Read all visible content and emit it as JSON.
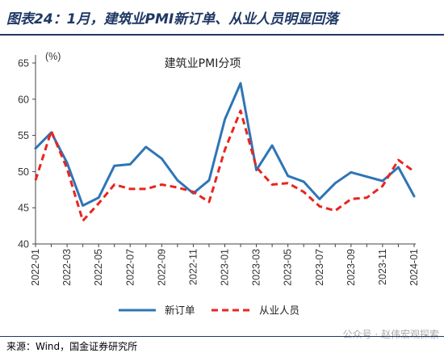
{
  "header": {
    "figure_title": "图表24：1月，建筑业PMI新订单、从业人员明显回落"
  },
  "footer": {
    "source": "来源：Wind，国金证券研究所",
    "watermark": "公众号 · 赵伟宏观探索"
  },
  "colors": {
    "title": "#1f3864",
    "series_new_orders": "#2e75b6",
    "series_employment": "#e8251f"
  },
  "chart_data": {
    "type": "line",
    "title": "建筑业PMI分项",
    "ylabel": "(%)",
    "xlabel": "",
    "ylim": [
      40,
      65
    ],
    "yticks": [
      40,
      45,
      50,
      55,
      60,
      65
    ],
    "x": [
      "2022-01",
      "2022-02",
      "2022-03",
      "2022-04",
      "2022-05",
      "2022-06",
      "2022-07",
      "2022-08",
      "2022-09",
      "2022-10",
      "2022-11",
      "2022-12",
      "2023-01",
      "2023-02",
      "2023-03",
      "2023-04",
      "2023-05",
      "2023-06",
      "2023-07",
      "2023-08",
      "2023-09",
      "2023-10",
      "2023-11",
      "2023-12",
      "2024-01"
    ],
    "xtick_labels": [
      "2022-01",
      "2022-03",
      "2022-05",
      "2022-07",
      "2022-09",
      "2022-11",
      "2023-01",
      "2023-03",
      "2023-05",
      "2023-07",
      "2023-09",
      "2023-11",
      "2024-01"
    ],
    "series": [
      {
        "name": "新订单",
        "style": "solid",
        "values": [
          53.2,
          55.4,
          51.2,
          45.3,
          46.4,
          50.8,
          51.0,
          53.4,
          51.8,
          48.8,
          47.0,
          48.8,
          57.2,
          62.2,
          50.2,
          53.6,
          49.4,
          48.6,
          46.2,
          48.4,
          49.9,
          49.3,
          48.7,
          50.6,
          46.6
        ]
      },
      {
        "name": "从业人员",
        "style": "dashed",
        "values": [
          48.8,
          55.6,
          50.4,
          43.2,
          45.6,
          48.2,
          47.6,
          47.6,
          48.2,
          47.8,
          47.2,
          45.8,
          53.0,
          58.4,
          50.6,
          48.2,
          48.4,
          47.2,
          45.2,
          44.6,
          46.2,
          46.4,
          48.0,
          51.6,
          50.0
        ]
      }
    ],
    "grid": false,
    "legend_placement": "bottom"
  }
}
